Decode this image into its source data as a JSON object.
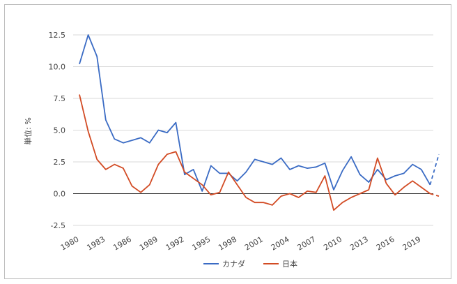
{
  "chart_data": {
    "type": "line",
    "ylabel": "単位: %",
    "ylim": [
      -2.5,
      13.75
    ],
    "yticks": [
      "12.5",
      "10.0",
      "7.5",
      "5.0",
      "2.5",
      "0.0",
      "-2.5"
    ],
    "ytick_values": [
      12.5,
      10.0,
      7.5,
      5.0,
      2.5,
      0.0,
      -2.5
    ],
    "xlim": [
      1980,
      2021
    ],
    "xticks": [
      "1980",
      "1983",
      "1986",
      "1989",
      "1992",
      "1995",
      "1998",
      "2001",
      "2004",
      "2007",
      "2010",
      "2013",
      "2016",
      "2019"
    ],
    "xtick_values": [
      1980,
      1983,
      1986,
      1989,
      1992,
      1995,
      1998,
      2001,
      2004,
      2007,
      2010,
      2013,
      2016,
      2019
    ],
    "legend_position": "bottom",
    "series": [
      {
        "name": "カナダ",
        "color": "#3a6bc4",
        "x": [
          1980,
          1981,
          1982,
          1983,
          1984,
          1985,
          1986,
          1987,
          1988,
          1989,
          1990,
          1991,
          1992,
          1993,
          1994,
          1995,
          1996,
          1997,
          1998,
          1999,
          2000,
          2001,
          2002,
          2003,
          2004,
          2005,
          2006,
          2007,
          2008,
          2009,
          2010,
          2011,
          2012,
          2013,
          2014,
          2015,
          2016,
          2017,
          2018,
          2019,
          2020,
          2021
        ],
        "values": [
          10.2,
          12.5,
          10.8,
          5.8,
          4.3,
          4.0,
          4.2,
          4.4,
          4.0,
          5.0,
          4.8,
          5.6,
          1.5,
          1.9,
          0.2,
          2.2,
          1.6,
          1.6,
          1.0,
          1.7,
          2.7,
          2.5,
          2.3,
          2.8,
          1.9,
          2.2,
          2.0,
          2.1,
          2.4,
          0.3,
          1.8,
          2.9,
          1.5,
          0.9,
          1.9,
          1.1,
          1.4,
          1.6,
          2.3,
          1.9,
          0.7,
          3.1
        ],
        "dashed_from": 2020
      },
      {
        "name": "日本",
        "color": "#d24b24",
        "x": [
          1980,
          1981,
          1982,
          1983,
          1984,
          1985,
          1986,
          1987,
          1988,
          1989,
          1990,
          1991,
          1992,
          1993,
          1994,
          1995,
          1996,
          1997,
          1998,
          1999,
          2000,
          2001,
          2002,
          2003,
          2004,
          2005,
          2006,
          2007,
          2008,
          2009,
          2010,
          2011,
          2012,
          2013,
          2014,
          2015,
          2016,
          2017,
          2018,
          2019,
          2020,
          2021
        ],
        "values": [
          7.8,
          4.9,
          2.7,
          1.9,
          2.3,
          2.0,
          0.6,
          0.1,
          0.7,
          2.3,
          3.1,
          3.3,
          1.7,
          1.2,
          0.7,
          -0.1,
          0.1,
          1.7,
          0.7,
          -0.3,
          -0.7,
          -0.7,
          -0.9,
          -0.2,
          0.0,
          -0.3,
          0.2,
          0.1,
          1.4,
          -1.3,
          -0.7,
          -0.3,
          0.0,
          0.3,
          2.8,
          0.8,
          -0.1,
          0.5,
          1.0,
          0.5,
          0.0,
          -0.2
        ],
        "dashed_from": 2020
      }
    ]
  }
}
